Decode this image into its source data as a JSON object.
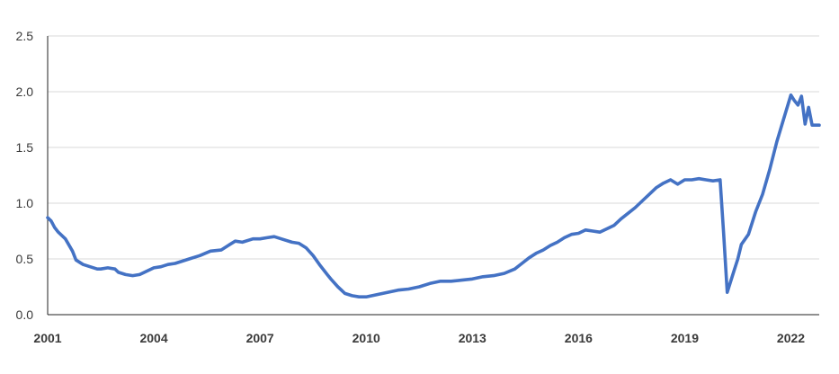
{
  "chart_data": {
    "type": "line",
    "title": "",
    "xlabel": "",
    "ylabel": "",
    "xlim": [
      2001,
      2022.8
    ],
    "ylim": [
      0,
      2.5
    ],
    "grid": "horizontal",
    "legend": "none",
    "y_ticks": [
      {
        "value": 0.0,
        "label": "0.0"
      },
      {
        "value": 0.5,
        "label": "0.5"
      },
      {
        "value": 1.0,
        "label": "1.0"
      },
      {
        "value": 1.5,
        "label": "1.5"
      },
      {
        "value": 2.0,
        "label": "2.0"
      },
      {
        "value": 2.5,
        "label": "2.5"
      }
    ],
    "x_ticks": [
      {
        "value": 2001,
        "label": "2001"
      },
      {
        "value": 2004,
        "label": "2004"
      },
      {
        "value": 2007,
        "label": "2007"
      },
      {
        "value": 2010,
        "label": "2010"
      },
      {
        "value": 2013,
        "label": "2013"
      },
      {
        "value": 2016,
        "label": "2016"
      },
      {
        "value": 2019,
        "label": "2019"
      },
      {
        "value": 2022,
        "label": "2022"
      }
    ],
    "colors": {
      "series": "#4472c4",
      "grid": "#d9d9d9",
      "axis": "#222222"
    },
    "series": [
      {
        "x": [
          2001.0,
          2001.1,
          2001.2,
          2001.3,
          2001.5,
          2001.7,
          2001.8,
          2001.9,
          2002.0,
          2002.2,
          2002.4,
          2002.5,
          2002.7,
          2002.9,
          2003.0,
          2003.2,
          2003.4,
          2003.6,
          2003.8,
          2004.0,
          2004.2,
          2004.4,
          2004.6,
          2004.8,
          2005.0,
          2005.3,
          2005.6,
          2005.9,
          2006.1,
          2006.3,
          2006.5,
          2006.8,
          2007.0,
          2007.2,
          2007.4,
          2007.6,
          2007.9,
          2008.1,
          2008.3,
          2008.5,
          2008.7,
          2008.9,
          2009.0,
          2009.2,
          2009.4,
          2009.6,
          2009.8,
          2010.0,
          2010.3,
          2010.6,
          2010.9,
          2011.2,
          2011.5,
          2011.8,
          2012.1,
          2012.4,
          2012.7,
          2013.0,
          2013.3,
          2013.6,
          2013.9,
          2014.2,
          2014.4,
          2014.6,
          2014.8,
          2015.0,
          2015.2,
          2015.4,
          2015.6,
          2015.8,
          2016.0,
          2016.2,
          2016.4,
          2016.6,
          2016.8,
          2017.0,
          2017.2,
          2017.4,
          2017.6,
          2017.8,
          2018.0,
          2018.2,
          2018.4,
          2018.6,
          2018.8,
          2019.0,
          2019.2,
          2019.4,
          2019.6,
          2019.8,
          2020.0,
          2020.1,
          2020.2,
          2020.3,
          2020.4,
          2020.5,
          2020.6,
          2020.8,
          2021.0,
          2021.2,
          2021.4,
          2021.6,
          2021.8,
          2022.0,
          2022.1,
          2022.2,
          2022.3,
          2022.4,
          2022.5,
          2022.6,
          2022.7,
          2022.8
        ],
        "values": [
          0.87,
          0.84,
          0.78,
          0.74,
          0.68,
          0.57,
          0.49,
          0.47,
          0.45,
          0.43,
          0.41,
          0.41,
          0.42,
          0.41,
          0.38,
          0.36,
          0.35,
          0.36,
          0.39,
          0.42,
          0.43,
          0.45,
          0.46,
          0.48,
          0.5,
          0.53,
          0.57,
          0.58,
          0.62,
          0.66,
          0.65,
          0.68,
          0.68,
          0.69,
          0.7,
          0.68,
          0.65,
          0.64,
          0.6,
          0.53,
          0.44,
          0.36,
          0.32,
          0.25,
          0.19,
          0.17,
          0.16,
          0.16,
          0.18,
          0.2,
          0.22,
          0.23,
          0.25,
          0.28,
          0.3,
          0.3,
          0.31,
          0.32,
          0.34,
          0.35,
          0.37,
          0.41,
          0.46,
          0.51,
          0.55,
          0.58,
          0.62,
          0.65,
          0.69,
          0.72,
          0.73,
          0.76,
          0.75,
          0.74,
          0.77,
          0.8,
          0.86,
          0.91,
          0.96,
          1.02,
          1.08,
          1.14,
          1.18,
          1.21,
          1.17,
          1.21,
          1.21,
          1.22,
          1.21,
          1.2,
          1.21,
          0.73,
          0.2,
          0.3,
          0.4,
          0.5,
          0.63,
          0.72,
          0.92,
          1.08,
          1.3,
          1.55,
          1.76,
          1.97,
          1.92,
          1.88,
          1.96,
          1.71,
          1.86,
          1.7,
          1.7,
          1.7
        ]
      }
    ]
  }
}
